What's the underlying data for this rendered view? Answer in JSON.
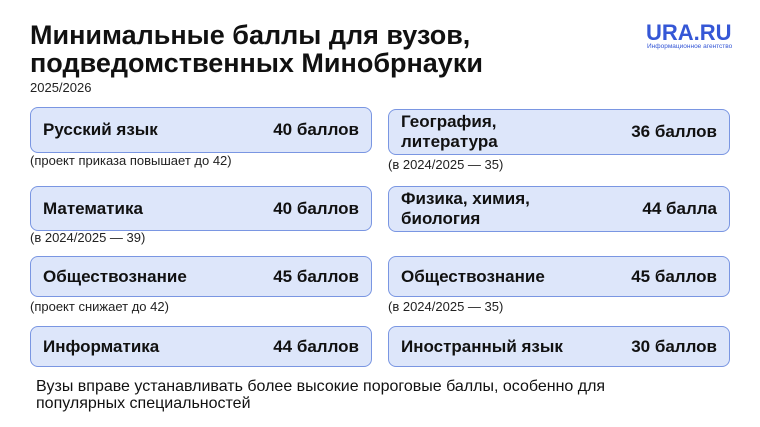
{
  "header": {
    "title": [
      "Минимальные баллы для вузов,",
      "подведомственных Минобрнауки"
    ],
    "subtitle": "2025/2026",
    "logo": "URA.RU",
    "logo_caption": "Информационное агентство"
  },
  "left": [
    {
      "subject": "Русский язык",
      "score": "40 баллов",
      "note": "(проект приказа повышает до 42)"
    },
    {
      "subject": "Математика",
      "score": "40 баллов",
      "note": "(в 2024/2025 — 39)"
    },
    {
      "subject": "Обществознание",
      "score": "45 баллов",
      "note": "(проект снижает до 42)"
    },
    {
      "subject": "Информатика",
      "score": "44 баллов"
    }
  ],
  "right": [
    {
      "subject": "География,\nлитература",
      "score": "36 баллов",
      "note": "(в 2024/2025 — 35)"
    },
    {
      "subject": "Физика, химия,\nбиология",
      "score": "44 балла"
    },
    {
      "subject": "Обществознание",
      "score": "45 баллов",
      "note": "(в 2024/2025 — 35)"
    },
    {
      "subject": "Иностранный язык",
      "score": "30 баллов"
    }
  ],
  "footer": "Вузы вправе устанавливать более высокие пороговые баллы, особенно для популярных специальностей"
}
